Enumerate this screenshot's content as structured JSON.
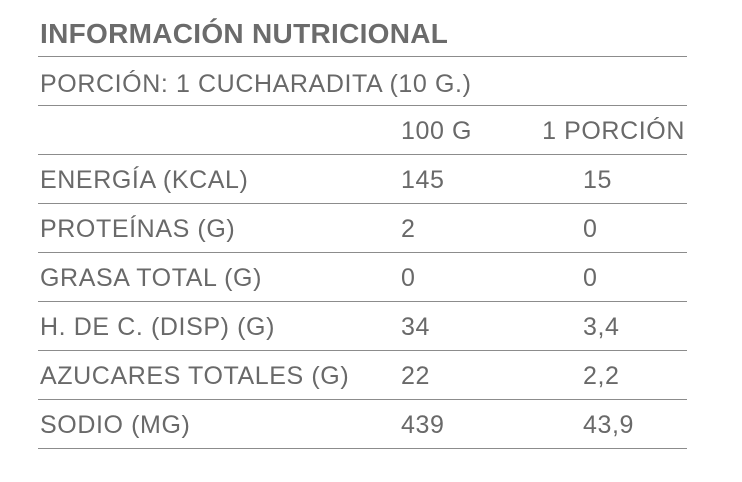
{
  "title": "INFORMACIÓN NUTRICIONAL",
  "serving": "PORCIÓN: 1 CUCHARADITA (10 G.)",
  "columns": {
    "per_100g": "100 G",
    "per_portion": "1 PORCIÓN"
  },
  "rows": [
    {
      "label": "ENERGÍA (KCAL)",
      "per_100g": "145",
      "per_portion": "15"
    },
    {
      "label": "PROTEÍNAS (G)",
      "per_100g": "2",
      "per_portion": "0"
    },
    {
      "label": "GRASA TOTAL (G)",
      "per_100g": "0",
      "per_portion": "0"
    },
    {
      "label": "H. DE C. (DISP) (G)",
      "per_100g": "34",
      "per_portion": "3,4"
    },
    {
      "label": "AZUCARES TOTALES (G)",
      "per_100g": "22",
      "per_portion": "2,2"
    },
    {
      "label": "SODIO (MG)",
      "per_100g": "439",
      "per_portion": "43,9"
    }
  ]
}
